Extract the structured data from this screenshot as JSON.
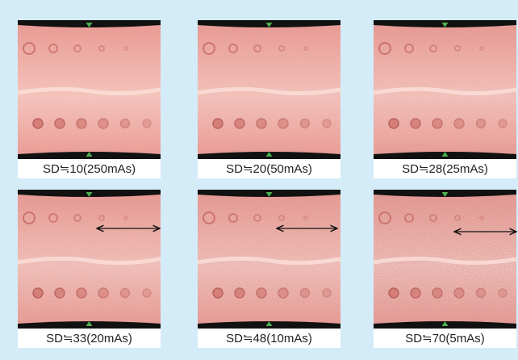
{
  "panels": [
    {
      "caption": "SD≒10(250mAs)"
    },
    {
      "caption": "SD≒20(50mAs)"
    },
    {
      "caption": "SD≒28(25mAs)"
    },
    {
      "caption": "SD≒33(20mAs)"
    },
    {
      "caption": "SD≒48(10mAs)"
    },
    {
      "caption": "SD≒70(5mAs)"
    }
  ]
}
